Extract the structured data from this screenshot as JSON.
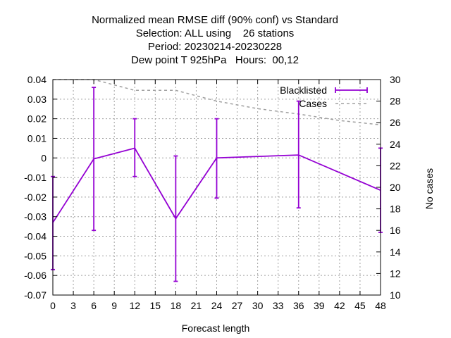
{
  "chart_data": {
    "type": "line",
    "title_lines": [
      "Normalized mean RMSE diff (90% conf) vs Standard",
      "Selection: ALL using    26 stations",
      "Period: 20230214-20230228",
      "Dew point T 925hPa   Hours:  00,12"
    ],
    "xlabel": "Forecast length",
    "ylabel": "",
    "y2label": "No cases",
    "xlim": [
      0,
      48
    ],
    "ylim": [
      -0.07,
      0.04
    ],
    "y2lim": [
      10,
      30
    ],
    "x_ticks": [
      0,
      3,
      6,
      9,
      12,
      15,
      18,
      21,
      24,
      27,
      30,
      33,
      36,
      39,
      42,
      45,
      48
    ],
    "y_ticks": [
      -0.07,
      -0.06,
      -0.05,
      -0.04,
      -0.03,
      -0.02,
      -0.01,
      0,
      0.01,
      0.02,
      0.03,
      0.04
    ],
    "y_tick_labels": [
      "-0.07",
      "-0.06",
      "-0.05",
      "-0.04",
      "-0.03",
      "-0.02",
      "-0.01",
      "0",
      "0.01",
      "0.02",
      "0.03",
      "0.04"
    ],
    "y2_ticks": [
      10,
      12,
      14,
      16,
      18,
      20,
      22,
      24,
      26,
      28,
      30
    ],
    "grid": true,
    "legend_position": "top-right",
    "series": [
      {
        "name": "Blacklisted",
        "kind": "errorbar-line",
        "color": "#9400d3",
        "x": [
          0,
          6,
          12,
          18,
          24,
          36,
          48
        ],
        "y": [
          -0.033,
          -0.0005,
          0.005,
          -0.031,
          0.0,
          0.0015,
          -0.0165
        ],
        "y_low": [
          -0.057,
          -0.037,
          -0.0095,
          -0.063,
          -0.0205,
          -0.0255,
          -0.038
        ],
        "y_high": [
          -0.0095,
          0.036,
          0.02,
          0.001,
          0.02,
          0.029,
          0.005
        ]
      },
      {
        "name": "Cases",
        "kind": "dashed-line",
        "axis": "y2",
        "color": "#a0a0a0",
        "x": [
          0,
          6,
          12,
          18,
          24,
          30,
          36,
          42,
          48
        ],
        "y": [
          30,
          30,
          29,
          29,
          28,
          27.3,
          26.8,
          26.2,
          25.8
        ]
      }
    ]
  }
}
